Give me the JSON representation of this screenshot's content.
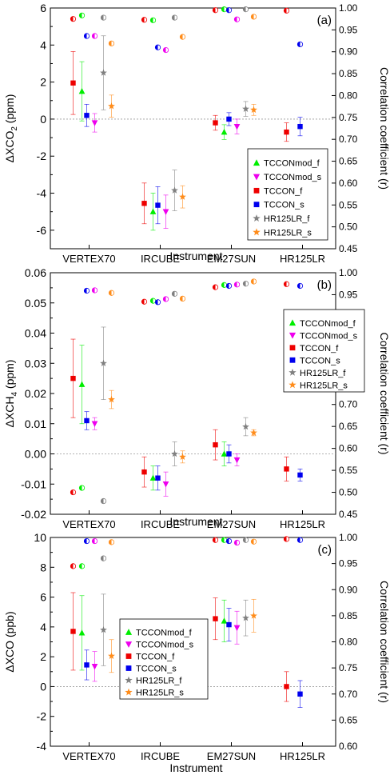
{
  "figure": {
    "categories": [
      "VERTEX70",
      "IRCUBE",
      "EM27SUN",
      "HR125LR"
    ],
    "xlabel": "Instrument",
    "ylabel_right": "Correlation coefficient (r)",
    "colors": {
      "TCCONmod_f": "#00ee00",
      "TCCONmod_s": "#ee00ee",
      "TCCON_f": "#ee0000",
      "TCCON_s": "#0000ee",
      "HR125LR_f": "#808080",
      "HR125LR_s": "#ff8c1a"
    }
  },
  "chart_data": [
    {
      "type": "scatter",
      "panel_label": "(a)",
      "ylabel_main": "ΔXCO",
      "ylabel_sub": "2",
      "ylabel_unit": " (ppm)",
      "ylim": [
        -7,
        6
      ],
      "yticks": [
        -6,
        -4,
        -2,
        0,
        2,
        4,
        6
      ],
      "y2lim": [
        0.45,
        1.0
      ],
      "y2ticks": [
        0.45,
        0.5,
        0.55,
        0.6,
        0.65,
        0.7,
        0.75,
        0.8,
        0.85,
        0.9,
        0.95,
        1.0
      ],
      "y2tick_labels": [
        "0.45",
        "0.50",
        "0.55",
        "0.60",
        "0.65",
        "0.70",
        "0.75",
        "0.80",
        "0.85",
        "0.90",
        "0.95",
        "1.00"
      ],
      "legend_position": "lower-right",
      "legend": [
        "TCCONmod_f",
        "TCCONmod_s",
        "TCCON_f",
        "TCCON_s",
        "HR125LR_f",
        "HR125LR_s"
      ],
      "series": [
        {
          "name": "TCCON_f",
          "marker": "square",
          "means": [
            1.95,
            -4.55,
            -0.2,
            -0.7
          ],
          "errors": [
            1.7,
            1.1,
            0.4,
            0.5
          ],
          "r": [
            0.975,
            0.973,
            0.995,
            0.994
          ]
        },
        {
          "name": "TCCONmod_f",
          "marker": "triangle",
          "means": [
            1.5,
            -5.0,
            -0.7,
            null
          ],
          "errors": [
            1.6,
            1.0,
            0.4,
            null
          ],
          "r": [
            0.983,
            0.972,
            0.997,
            null
          ]
        },
        {
          "name": "TCCON_s",
          "marker": "square",
          "means": [
            0.2,
            -4.65,
            0.0,
            -0.4
          ],
          "errors": [
            0.6,
            1.0,
            0.35,
            0.5
          ],
          "r": [
            0.936,
            0.91,
            0.995,
            0.917
          ]
        },
        {
          "name": "TCCONmod_s",
          "marker": "triangle-down",
          "means": [
            -0.2,
            -5.0,
            -0.4,
            null
          ],
          "errors": [
            0.5,
            0.9,
            0.4,
            null
          ],
          "r": [
            0.936,
            0.904,
            0.974,
            null
          ]
        },
        {
          "name": "HR125LR_f",
          "marker": "star",
          "means": [
            2.5,
            -3.85,
            0.55,
            null
          ],
          "errors": [
            2.0,
            1.1,
            0.4,
            null
          ],
          "r": [
            0.978,
            0.978,
            0.997,
            null
          ]
        },
        {
          "name": "HR125LR_s",
          "marker": "star",
          "means": [
            0.7,
            -4.2,
            0.5,
            null
          ],
          "errors": [
            0.6,
            0.6,
            0.3,
            null
          ],
          "r": [
            0.919,
            0.934,
            0.98,
            null
          ]
        }
      ]
    },
    {
      "type": "scatter",
      "panel_label": "(b)",
      "ylabel_main": "ΔXCH",
      "ylabel_sub": "4",
      "ylabel_unit": " (ppm)",
      "ylim": [
        -0.02,
        0.06
      ],
      "yticks": [
        -0.02,
        -0.01,
        0.0,
        0.01,
        0.02,
        0.03,
        0.04,
        0.05,
        0.06
      ],
      "ytick_labels": [
        "-0.02",
        "-0.01",
        "0.00",
        "0.01",
        "0.02",
        "0.03",
        "0.04",
        "0.05",
        "0.06"
      ],
      "y2lim": [
        0.45,
        1.0
      ],
      "y2ticks": [
        0.45,
        0.5,
        0.55,
        0.6,
        0.65,
        0.7,
        0.75,
        0.8,
        0.85,
        0.9,
        0.95,
        1.0
      ],
      "y2tick_labels": [
        "0.45",
        "0.50",
        "0.55",
        "0.60",
        "0.65",
        "0.70",
        "0.75",
        "0.80",
        "0.85",
        "0.90",
        "0.95",
        "1.00"
      ],
      "legend_position": "upper-right",
      "legend": [
        "TCCONmod_f",
        "TCCONmod_s",
        "TCCON_f",
        "TCCON_s",
        "HR125LR_f",
        "HR125LR_s"
      ],
      "series": [
        {
          "name": "TCCON_f",
          "marker": "square",
          "means": [
            0.025,
            -0.006,
            0.003,
            -0.005
          ],
          "errors": [
            0.013,
            0.005,
            0.005,
            0.004
          ],
          "r": [
            0.5,
            0.934,
            0.967,
            0.974
          ]
        },
        {
          "name": "TCCONmod_f",
          "marker": "triangle",
          "means": [
            0.023,
            -0.008,
            0.0,
            null
          ],
          "errors": [
            0.013,
            0.004,
            0.004,
            null
          ],
          "r": [
            0.51,
            0.936,
            0.972,
            null
          ]
        },
        {
          "name": "TCCON_s",
          "marker": "square",
          "means": [
            0.011,
            -0.008,
            0.0,
            -0.007
          ],
          "errors": [
            0.003,
            0.004,
            0.003,
            0.002
          ],
          "r": [
            0.959,
            0.933,
            0.97,
            0.97
          ]
        },
        {
          "name": "TCCONmod_s",
          "marker": "triangle-down",
          "means": [
            0.01,
            -0.01,
            -0.002,
            null
          ],
          "errors": [
            0.002,
            0.004,
            0.002,
            null
          ],
          "r": [
            0.96,
            0.94,
            0.973,
            null
          ]
        },
        {
          "name": "HR125LR_f",
          "marker": "star",
          "means": [
            0.03,
            0.0,
            0.009,
            null
          ],
          "errors": [
            0.012,
            0.004,
            0.003,
            null
          ],
          "r": [
            0.48,
            0.952,
            0.975,
            null
          ]
        },
        {
          "name": "HR125LR_s",
          "marker": "star",
          "means": [
            0.018,
            -0.001,
            0.007,
            null
          ],
          "errors": [
            0.003,
            0.002,
            0.001,
            null
          ],
          "r": [
            0.954,
            0.941,
            0.98,
            null
          ]
        }
      ]
    },
    {
      "type": "scatter",
      "panel_label": "(c)",
      "ylabel_main": "ΔXCO",
      "ylabel_sub": "",
      "ylabel_unit": " (ppb)",
      "ylim": [
        -4,
        10
      ],
      "yticks": [
        -4,
        -2,
        0,
        2,
        4,
        6,
        8,
        10
      ],
      "y2lim": [
        0.6,
        1.0
      ],
      "y2ticks": [
        0.6,
        0.65,
        0.7,
        0.75,
        0.8,
        0.85,
        0.9,
        0.95,
        1.0
      ],
      "y2tick_labels": [
        "0.60",
        "0.65",
        "0.70",
        "0.75",
        "0.80",
        "0.85",
        "0.90",
        "0.95",
        "1.00"
      ],
      "legend_position": "lower-left",
      "legend": [
        "TCCONmod_f",
        "TCCONmod_s",
        "TCCON_f",
        "TCCON_s",
        "HR125LR_f",
        "HR125LR_s"
      ],
      "series": [
        {
          "name": "TCCON_f",
          "marker": "square",
          "means": [
            3.7,
            null,
            4.55,
            0.0
          ],
          "errors": [
            2.6,
            null,
            1.4,
            1.0
          ],
          "r": [
            0.945,
            null,
            0.995,
            0.997
          ]
        },
        {
          "name": "TCCONmod_f",
          "marker": "triangle",
          "means": [
            3.6,
            null,
            4.4,
            null
          ],
          "errors": [
            2.5,
            null,
            1.4,
            null
          ],
          "r": [
            0.945,
            null,
            0.995,
            null
          ]
        },
        {
          "name": "TCCON_s",
          "marker": "square",
          "means": [
            1.45,
            null,
            4.15,
            -0.5
          ],
          "errors": [
            1.0,
            null,
            1.1,
            0.9
          ],
          "r": [
            0.993,
            null,
            0.993,
            0.995
          ]
        },
        {
          "name": "TCCONmod_s",
          "marker": "triangle-down",
          "means": [
            1.35,
            null,
            3.95,
            null
          ],
          "errors": [
            1.0,
            null,
            1.1,
            null
          ],
          "r": [
            0.993,
            null,
            0.99,
            null
          ]
        },
        {
          "name": "HR125LR_f",
          "marker": "star",
          "means": [
            3.8,
            null,
            4.6,
            null
          ],
          "errors": [
            2.4,
            null,
            1.2,
            null
          ],
          "r": [
            0.96,
            null,
            0.995,
            null
          ]
        },
        {
          "name": "HR125LR_s",
          "marker": "star",
          "means": [
            2.05,
            null,
            4.75,
            null
          ],
          "errors": [
            1.1,
            null,
            1.1,
            null
          ],
          "r": [
            0.991,
            null,
            0.992,
            null
          ]
        }
      ]
    }
  ]
}
